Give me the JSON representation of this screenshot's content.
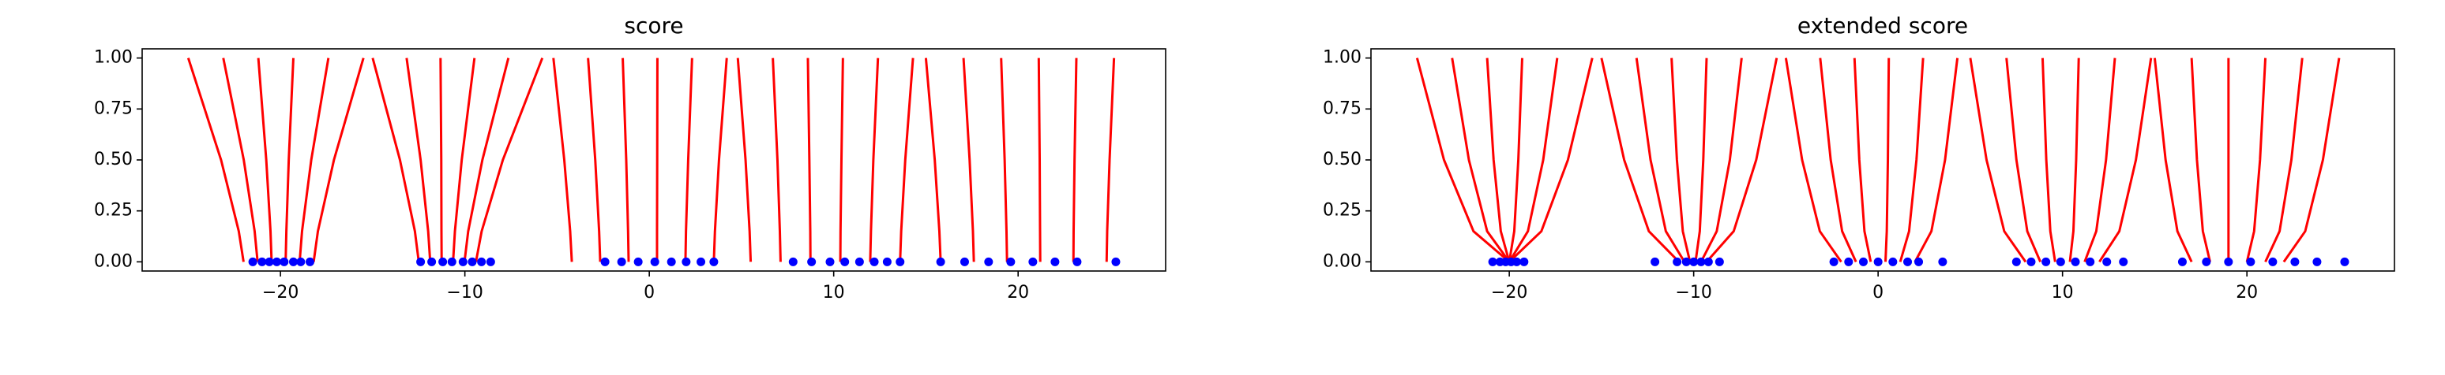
{
  "chart_data": [
    {
      "type": "line",
      "title": "score",
      "xlim": [
        -27.5,
        28
      ],
      "ylim": [
        -0.045,
        1.045
      ],
      "xticks": [
        {
          "value": -20,
          "label": "−20"
        },
        {
          "value": -10,
          "label": "−10"
        },
        0,
        10,
        20
      ],
      "yticks": [
        {
          "value": 0,
          "label": "0.00"
        },
        {
          "value": 0.25,
          "label": "0.25"
        },
        {
          "value": 0.5,
          "label": "0.50"
        },
        {
          "value": 0.75,
          "label": "0.75"
        },
        {
          "value": 1,
          "label": "1.00"
        }
      ],
      "curve_color": "#ff0000",
      "point_color": "#0000ff",
      "y": [
        0,
        0.15,
        0.5,
        1
      ],
      "curves": [
        [
          -22,
          -22.26,
          -23.22,
          -25
        ],
        [
          -21.24,
          -21.4,
          -21.99,
          -23.1
        ],
        [
          -20.48,
          -20.54,
          -20.77,
          -21.2
        ],
        [
          -19.72,
          -19.68,
          -19.55,
          -19.3
        ],
        [
          -18.96,
          -18.83,
          -18.33,
          -17.4
        ],
        [
          -18.2,
          -17.97,
          -17.1,
          -15.5
        ],
        [
          -12.5,
          -12.71,
          -13.52,
          -15
        ],
        [
          -11.88,
          -11.99,
          -12.4,
          -13.16
        ],
        [
          -11.26,
          -11.27,
          -11.28,
          -11.32
        ],
        [
          -10.64,
          -10.54,
          -10.17,
          -9.48
        ],
        [
          -10.02,
          -9.82,
          -9.05,
          -7.64
        ],
        [
          -9.4,
          -9.09,
          -7.94,
          -5.8
        ],
        [
          -4.2,
          -4.29,
          -4.61,
          -5.2
        ],
        [
          -2.66,
          -2.72,
          -2.93,
          -3.32
        ],
        [
          -1.12,
          -1.15,
          -1.25,
          -1.44
        ],
        [
          0.42,
          0.42,
          0.43,
          0.44
        ],
        [
          1.96,
          1.99,
          2.11,
          2.32
        ],
        [
          3.5,
          3.56,
          3.78,
          4.2
        ],
        [
          5.5,
          5.44,
          5.22,
          4.8
        ],
        [
          7.12,
          7.08,
          6.95,
          6.7
        ],
        [
          8.74,
          8.73,
          8.68,
          8.6
        ],
        [
          10.36,
          10.37,
          10.42,
          10.5
        ],
        [
          11.98,
          12.02,
          12.15,
          12.4
        ],
        [
          13.6,
          13.66,
          13.88,
          14.3
        ],
        [
          15.8,
          15.73,
          15.48,
          15
        ],
        [
          17.6,
          17.55,
          17.37,
          17.04
        ],
        [
          19.4,
          19.37,
          19.27,
          19.08
        ],
        [
          21.2,
          21.19,
          21.17,
          21.12
        ],
        [
          23,
          23.01,
          23.06,
          23.16
        ],
        [
          24.8,
          24.83,
          24.96,
          25.2
        ]
      ],
      "points": [
        -21.5,
        -21,
        -20.6,
        -20.2,
        -19.8,
        -19.3,
        -18.9,
        -18.4,
        -12.4,
        -11.8,
        -11.2,
        -10.7,
        -10.1,
        -9.6,
        -9.1,
        -8.6,
        -2.4,
        -1.5,
        -0.6,
        0.3,
        1.2,
        2,
        2.8,
        3.5,
        7.8,
        8.8,
        9.8,
        10.6,
        11.4,
        12.2,
        12.9,
        13.6,
        15.8,
        17.1,
        18.4,
        19.6,
        20.8,
        22,
        23.2,
        25.3
      ]
    },
    {
      "type": "line",
      "title": "extended score",
      "xlim": [
        -27.5,
        28
      ],
      "ylim": [
        -0.045,
        1.045
      ],
      "xticks": [
        {
          "value": -20,
          "label": "−20"
        },
        {
          "value": -10,
          "label": "−10"
        },
        0,
        10,
        20
      ],
      "yticks": [
        {
          "value": 0,
          "label": "0.00"
        },
        {
          "value": 0.25,
          "label": "0.25"
        },
        {
          "value": 0.5,
          "label": "0.50"
        },
        {
          "value": 0.75,
          "label": "0.75"
        },
        {
          "value": 1,
          "label": "1.00"
        }
      ],
      "curve_color": "#ff0000",
      "point_color": "#0000ff",
      "y": [
        0,
        0.15,
        0.5,
        1
      ],
      "curves": [
        [
          -20,
          -21.94,
          -23.54,
          -25
        ],
        [
          -20,
          -21.2,
          -22.19,
          -23.1
        ],
        [
          -20,
          -20.46,
          -20.85,
          -21.2
        ],
        [
          -20,
          -19.73,
          -19.51,
          -19.3
        ],
        [
          -20,
          -18.99,
          -18.16,
          -17.4
        ],
        [
          -20,
          -18.26,
          -16.82,
          -15.5
        ],
        [
          -10.8,
          -12.43,
          -13.77,
          -15
        ],
        [
          -10.5,
          -11.51,
          -12.34,
          -13.1
        ],
        [
          -10.2,
          -10.59,
          -10.91,
          -11.2
        ],
        [
          -9.9,
          -9.67,
          -9.48,
          -9.3
        ],
        [
          -9.6,
          -8.75,
          -8.04,
          -7.4
        ],
        [
          -9.3,
          -7.83,
          -6.61,
          -5.5
        ],
        [
          -2,
          -3.16,
          -4.12,
          -5
        ],
        [
          -1.2,
          -1.95,
          -2.57,
          -3.14
        ],
        [
          -0.4,
          -0.74,
          -1.02,
          -1.28
        ],
        [
          0.4,
          0.47,
          0.53,
          0.58
        ],
        [
          1.2,
          1.68,
          2.08,
          2.44
        ],
        [
          2,
          2.89,
          3.63,
          4.3
        ],
        [
          8,
          6.84,
          5.88,
          5
        ],
        [
          8.8,
          8.09,
          7.5,
          6.96
        ],
        [
          9.6,
          9.34,
          9.12,
          8.92
        ],
        [
          10.4,
          10.59,
          10.74,
          10.88
        ],
        [
          11.2,
          11.83,
          12.36,
          12.84
        ],
        [
          12,
          13.08,
          13.98,
          14.8
        ],
        [
          17,
          16.23,
          15.59,
          15
        ],
        [
          18,
          17.61,
          17.29,
          17
        ],
        [
          19,
          19,
          19,
          19
        ],
        [
          20,
          20.39,
          20.71,
          21
        ],
        [
          21,
          21.77,
          22.41,
          23
        ],
        [
          22,
          23.16,
          24.12,
          25
        ]
      ],
      "points": [
        -20.9,
        -20.5,
        -20.2,
        -19.9,
        -19.6,
        -19.2,
        -12.1,
        -10.9,
        -10.4,
        -10,
        -9.6,
        -9.2,
        -8.6,
        -2.4,
        -1.6,
        -0.8,
        0,
        0.8,
        1.6,
        2.2,
        3.5,
        7.5,
        8.3,
        9.1,
        9.9,
        10.7,
        11.5,
        12.4,
        13.3,
        16.5,
        17.8,
        19,
        20.2,
        21.4,
        22.6,
        23.8,
        25.3
      ]
    }
  ]
}
